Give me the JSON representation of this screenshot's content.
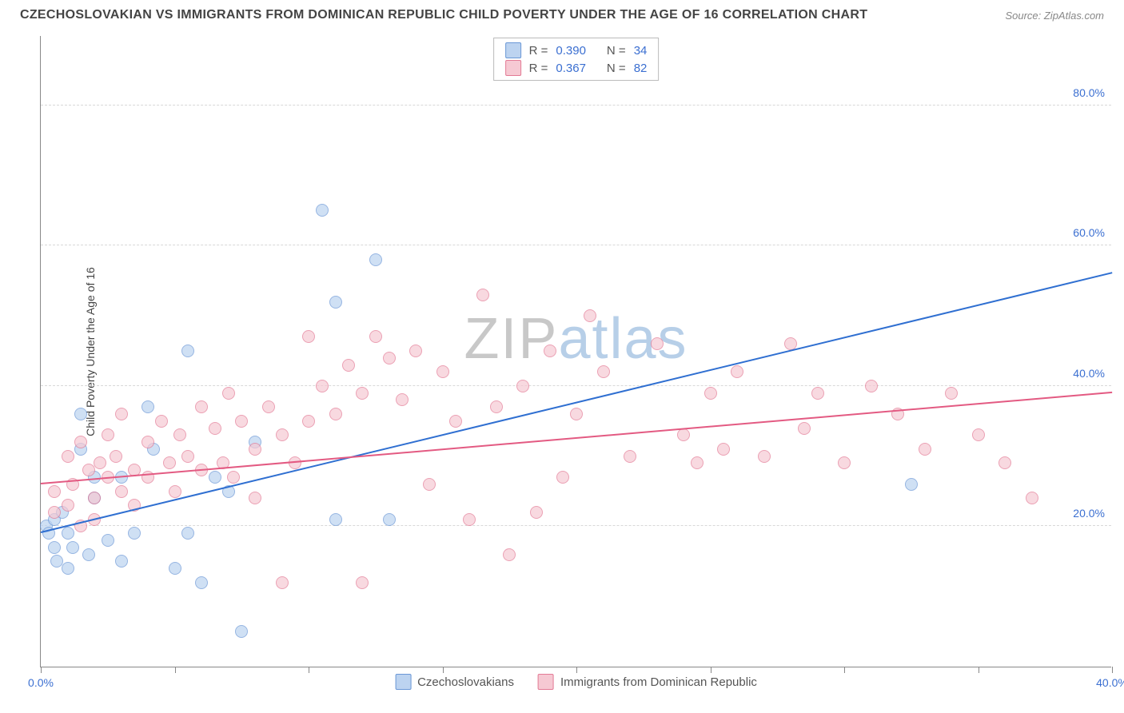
{
  "title": "CZECHOSLOVAKIAN VS IMMIGRANTS FROM DOMINICAN REPUBLIC CHILD POVERTY UNDER THE AGE OF 16 CORRELATION CHART",
  "source": "Source: ZipAtlas.com",
  "ylabel": "Child Poverty Under the Age of 16",
  "watermark_a": "ZIP",
  "watermark_b": "atlas",
  "watermark_color_a": "#c8c8c8",
  "watermark_color_b": "#b7cfe8",
  "chart": {
    "xlim": [
      0,
      40
    ],
    "ylim": [
      0,
      90
    ],
    "ytick_values": [
      20,
      40,
      60,
      80
    ],
    "ytick_labels": [
      "20.0%",
      "40.0%",
      "60.0%",
      "80.0%"
    ],
    "xtick_values": [
      0,
      5,
      10,
      15,
      20,
      25,
      30,
      35,
      40
    ],
    "xtick_labels_shown": {
      "0": "0.0%",
      "40": "40.0%"
    },
    "grid_color": "#d8d8d8",
    "axis_color": "#888888",
    "label_color": "#3b6fd1",
    "marker_radius": 8,
    "marker_opacity": 0.7,
    "marker_border_width": 1
  },
  "series": [
    {
      "key": "czech",
      "label": "Czechoslovakians",
      "fill": "#bcd3f0",
      "stroke": "#6a97d6",
      "trend_color": "#2f6fd1",
      "R": "0.390",
      "N": "34",
      "trend": {
        "x1": 0,
        "y1": 19,
        "x2": 40,
        "y2": 56
      },
      "points": [
        [
          0.2,
          20
        ],
        [
          0.3,
          19
        ],
        [
          0.5,
          21
        ],
        [
          0.5,
          17
        ],
        [
          0.6,
          15
        ],
        [
          0.8,
          22
        ],
        [
          1.0,
          14
        ],
        [
          1.0,
          19
        ],
        [
          1.2,
          17
        ],
        [
          1.5,
          31
        ],
        [
          1.5,
          36
        ],
        [
          1.8,
          16
        ],
        [
          2.0,
          27
        ],
        [
          2.0,
          24
        ],
        [
          2.5,
          18
        ],
        [
          3.0,
          27
        ],
        [
          3.0,
          15
        ],
        [
          3.5,
          19
        ],
        [
          4.0,
          37
        ],
        [
          4.2,
          31
        ],
        [
          5.0,
          14
        ],
        [
          5.5,
          19
        ],
        [
          5.5,
          45
        ],
        [
          6.0,
          12
        ],
        [
          6.5,
          27
        ],
        [
          7.0,
          25
        ],
        [
          7.5,
          5
        ],
        [
          8.0,
          32
        ],
        [
          10.5,
          65
        ],
        [
          11.0,
          52
        ],
        [
          12.5,
          58
        ],
        [
          11.0,
          21
        ],
        [
          13.0,
          21
        ],
        [
          32.5,
          26
        ]
      ]
    },
    {
      "key": "dominican",
      "label": "Immigrants from Dominican Republic",
      "fill": "#f6c9d3",
      "stroke": "#e37a95",
      "trend_color": "#e35a82",
      "R": "0.367",
      "N": "82",
      "trend": {
        "x1": 0,
        "y1": 26,
        "x2": 40,
        "y2": 39
      },
      "points": [
        [
          0.5,
          25
        ],
        [
          0.5,
          22
        ],
        [
          1.0,
          30
        ],
        [
          1.0,
          23
        ],
        [
          1.2,
          26
        ],
        [
          1.5,
          20
        ],
        [
          1.5,
          32
        ],
        [
          1.8,
          28
        ],
        [
          2.0,
          24
        ],
        [
          2.0,
          21
        ],
        [
          2.2,
          29
        ],
        [
          2.5,
          33
        ],
        [
          2.5,
          27
        ],
        [
          2.8,
          30
        ],
        [
          3.0,
          25
        ],
        [
          3.0,
          36
        ],
        [
          3.5,
          28
        ],
        [
          3.5,
          23
        ],
        [
          4.0,
          32
        ],
        [
          4.0,
          27
        ],
        [
          4.5,
          35
        ],
        [
          4.8,
          29
        ],
        [
          5.0,
          25
        ],
        [
          5.2,
          33
        ],
        [
          5.5,
          30
        ],
        [
          6.0,
          37
        ],
        [
          6.0,
          28
        ],
        [
          6.5,
          34
        ],
        [
          6.8,
          29
        ],
        [
          7.0,
          39
        ],
        [
          7.2,
          27
        ],
        [
          7.5,
          35
        ],
        [
          8.0,
          31
        ],
        [
          8.0,
          24
        ],
        [
          8.5,
          37
        ],
        [
          9.0,
          33
        ],
        [
          9.0,
          12
        ],
        [
          9.5,
          29
        ],
        [
          10.0,
          35
        ],
        [
          10.0,
          47
        ],
        [
          10.5,
          40
        ],
        [
          11.0,
          36
        ],
        [
          11.5,
          43
        ],
        [
          12.0,
          39
        ],
        [
          12.0,
          12
        ],
        [
          12.5,
          47
        ],
        [
          13.0,
          44
        ],
        [
          13.5,
          38
        ],
        [
          14.0,
          45
        ],
        [
          14.5,
          26
        ],
        [
          15.0,
          42
        ],
        [
          15.5,
          35
        ],
        [
          16.0,
          21
        ],
        [
          16.5,
          53
        ],
        [
          17.0,
          37
        ],
        [
          17.5,
          16
        ],
        [
          18.0,
          40
        ],
        [
          18.5,
          22
        ],
        [
          19.0,
          45
        ],
        [
          19.5,
          27
        ],
        [
          20.0,
          36
        ],
        [
          20.5,
          50
        ],
        [
          21.0,
          42
        ],
        [
          22.0,
          30
        ],
        [
          23.0,
          46
        ],
        [
          24.0,
          33
        ],
        [
          24.5,
          29
        ],
        [
          25.0,
          39
        ],
        [
          25.5,
          31
        ],
        [
          26.0,
          42
        ],
        [
          27.0,
          30
        ],
        [
          28.0,
          46
        ],
        [
          28.5,
          34
        ],
        [
          29.0,
          39
        ],
        [
          30.0,
          29
        ],
        [
          31.0,
          40
        ],
        [
          32.0,
          36
        ],
        [
          33.0,
          31
        ],
        [
          34.0,
          39
        ],
        [
          35.0,
          33
        ],
        [
          36.0,
          29
        ],
        [
          37.0,
          24
        ]
      ]
    }
  ],
  "legend_text": {
    "R": "R =",
    "N": "N ="
  }
}
